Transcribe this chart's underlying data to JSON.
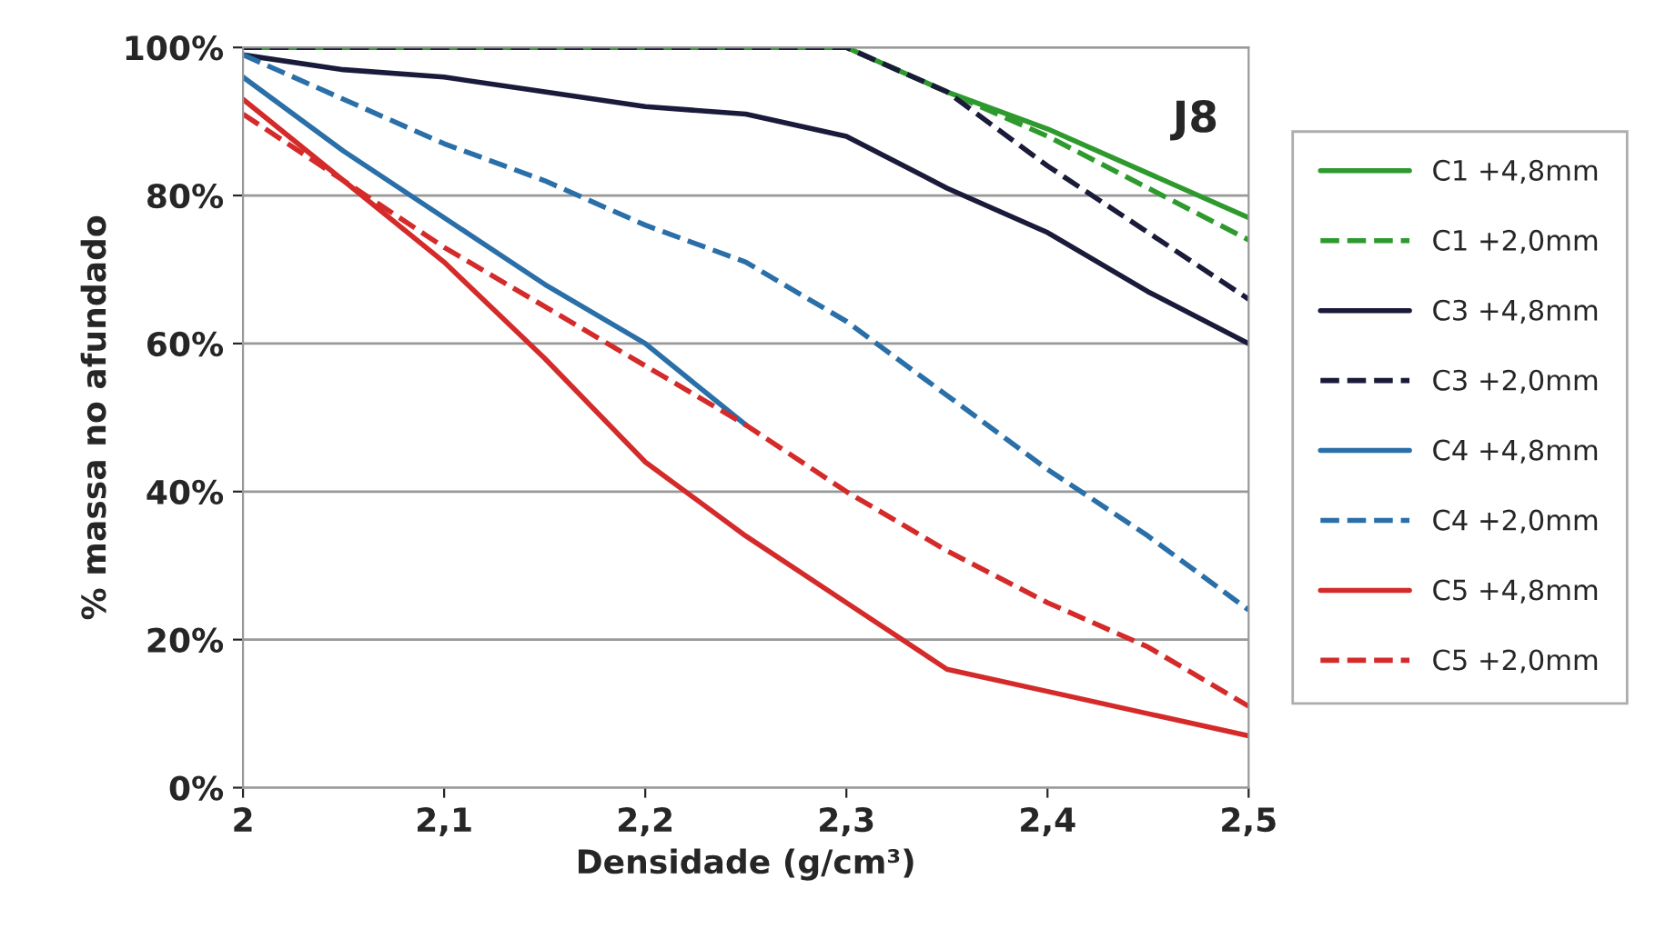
{
  "chart_data": {
    "type": "line",
    "xlabel": "Densidade (g/cm³)",
    "ylabel": "% massa no afundado",
    "annotations": [
      "J8"
    ],
    "x": [
      2,
      2.05,
      2.1,
      2.15,
      2.2,
      2.25,
      2.3,
      2.35,
      2.4,
      2.45,
      2.5
    ],
    "series": [
      {
        "name": "C1 +4,8mm",
        "color": "#2e9a2e",
        "line_style": "solid",
        "values": [
          100,
          100,
          100,
          100,
          100,
          100,
          100,
          94,
          89,
          83,
          77
        ]
      },
      {
        "name": "C1 +2,0mm",
        "color": "#2e9a2e",
        "line_style": "dashed",
        "values": [
          100,
          100,
          100,
          100,
          100,
          100,
          100,
          94,
          88,
          81,
          74
        ]
      },
      {
        "name": "C3 +4,8mm",
        "color": "#1a1a3a",
        "line_style": "solid",
        "values": [
          99,
          97,
          96,
          94,
          92,
          91,
          88,
          81,
          75,
          67,
          60
        ]
      },
      {
        "name": "C3 +2,0mm",
        "color": "#1a1a3a",
        "line_style": "dashed",
        "values": [
          100,
          100,
          100,
          100,
          100,
          100,
          100,
          94,
          84,
          75,
          66
        ]
      },
      {
        "name": "C4 +4,8mm",
        "color": "#2a6fa8",
        "line_style": "solid",
        "values": [
          96,
          86,
          77,
          68,
          60,
          49,
          null,
          null,
          null,
          null,
          null
        ]
      },
      {
        "name": "C4 +2,0mm",
        "color": "#2a6fa8",
        "line_style": "dashed",
        "values": [
          99,
          93,
          87,
          82,
          76,
          71,
          63,
          53,
          43,
          34,
          24
        ]
      },
      {
        "name": "C5 +4,8mm",
        "color": "#d42a2a",
        "line_style": "solid",
        "values": [
          93,
          82,
          71,
          58,
          44,
          34,
          25,
          16,
          13,
          10,
          7
        ]
      },
      {
        "name": "C5 +2,0mm",
        "color": "#d42a2a",
        "line_style": "dashed",
        "values": [
          91,
          82,
          73,
          65,
          57,
          49,
          40,
          32,
          25,
          19,
          11
        ]
      }
    ],
    "xlim": [
      2,
      2.5
    ],
    "xticks": [
      2,
      {
        "value": 2.1,
        "label": "2,1"
      },
      {
        "value": 2.2,
        "label": "2,2"
      },
      {
        "value": 2.3,
        "label": "2,3"
      },
      {
        "value": 2.4,
        "label": "2,4"
      },
      {
        "value": 2.5,
        "label": "2,5"
      }
    ],
    "ylim": [
      0,
      100
    ],
    "yticks": [
      {
        "value": 0,
        "label": "0%"
      },
      {
        "value": 20,
        "label": "20%"
      },
      {
        "value": 40,
        "label": "40%"
      },
      {
        "value": 60,
        "label": "60%"
      },
      {
        "value": 80,
        "label": "80%"
      },
      {
        "value": 100,
        "label": "100%"
      }
    ],
    "grid": "y",
    "legend": "right",
    "marker": "none"
  }
}
